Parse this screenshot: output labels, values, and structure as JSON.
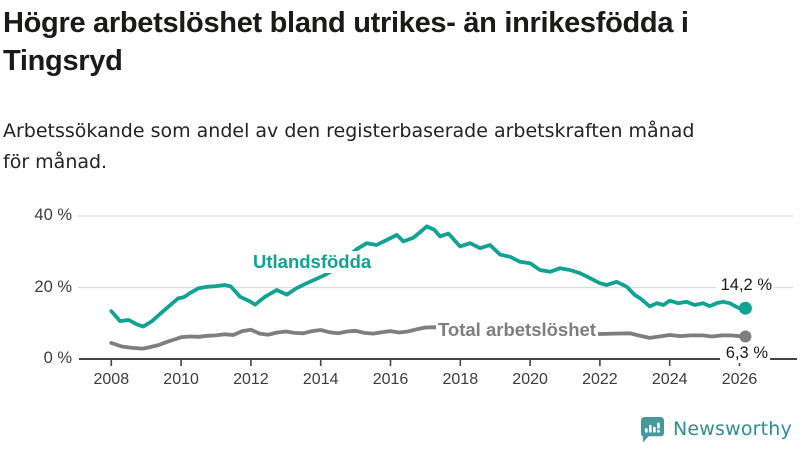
{
  "header": {
    "title": "Högre arbetslöshet bland utrikes- än inrikesfödda i Tingsryd",
    "title_lines": [
      "Högre arbetslöshet bland utrikes- än inrikesfödda i",
      "Tingsryd"
    ],
    "subtitle": "Arbetssökande som andel av den registerbaserade arbetskraften månad för månad.",
    "subtitle_lines": [
      "Arbetssökande som andel av den registerbaserade arbetskraften månad",
      "för månad."
    ]
  },
  "chart_data": {
    "type": "line",
    "title": "Högre arbetslöshet bland utrikes- än inrikesfödda i Tingsryd",
    "subtitle": "Arbetssökande som andel av den registerbaserade arbetskraften månad för månad.",
    "xlabel": "",
    "ylabel": "",
    "ylim": [
      0,
      43
    ],
    "xlim": [
      2007.1,
      2027.6
    ],
    "grid": "horizontal",
    "grid_color": "#dcdcdc",
    "axis_color": "#444444",
    "tick_label_color": "#3d3d3d",
    "x_ticks": [
      2008,
      2010,
      2012,
      2014,
      2016,
      2018,
      2020,
      2022,
      2024,
      2026
    ],
    "y_gridlines": [
      20,
      40
    ],
    "y_axis_labels": [
      {
        "value": 40,
        "label": "40 %"
      },
      {
        "value": 20,
        "label": "20 %"
      },
      {
        "value": 0,
        "label": "0 %"
      }
    ],
    "series": [
      {
        "name": "Utlandsfödda",
        "color": "#12a294",
        "end_label": "14,2 %",
        "end_value": 14.2,
        "points": [
          [
            2008.0,
            13.4
          ],
          [
            2008.25,
            10.6
          ],
          [
            2008.5,
            10.9
          ],
          [
            2008.75,
            9.6
          ],
          [
            2008.92,
            9.1
          ],
          [
            2009.17,
            10.6
          ],
          [
            2009.42,
            12.8
          ],
          [
            2009.67,
            14.9
          ],
          [
            2009.92,
            17.0
          ],
          [
            2010.08,
            17.3
          ],
          [
            2010.25,
            18.4
          ],
          [
            2010.5,
            19.8
          ],
          [
            2010.75,
            20.2
          ],
          [
            2011.0,
            20.4
          ],
          [
            2011.25,
            20.7
          ],
          [
            2011.42,
            20.3
          ],
          [
            2011.69,
            17.4
          ],
          [
            2011.97,
            16.1
          ],
          [
            2012.12,
            15.2
          ],
          [
            2012.4,
            17.4
          ],
          [
            2012.74,
            19.3
          ],
          [
            2013.03,
            18.0
          ],
          [
            2013.31,
            19.8
          ],
          [
            2013.6,
            21.2
          ],
          [
            2013.85,
            22.3
          ],
          [
            2014.1,
            23.4
          ],
          [
            2014.35,
            24.8
          ],
          [
            2014.6,
            26.8
          ],
          [
            2014.85,
            29.2
          ],
          [
            2015.03,
            30.7
          ],
          [
            2015.32,
            32.4
          ],
          [
            2015.6,
            31.9
          ],
          [
            2015.89,
            33.3
          ],
          [
            2016.18,
            34.7
          ],
          [
            2016.37,
            32.9
          ],
          [
            2016.65,
            33.9
          ],
          [
            2016.85,
            35.5
          ],
          [
            2017.04,
            37.1
          ],
          [
            2017.25,
            36.2
          ],
          [
            2017.42,
            34.3
          ],
          [
            2017.66,
            35.1
          ],
          [
            2017.99,
            31.5
          ],
          [
            2018.28,
            32.4
          ],
          [
            2018.57,
            31.0
          ],
          [
            2018.85,
            31.9
          ],
          [
            2019.14,
            29.2
          ],
          [
            2019.43,
            28.6
          ],
          [
            2019.71,
            27.2
          ],
          [
            2020.0,
            26.8
          ],
          [
            2020.28,
            24.9
          ],
          [
            2020.57,
            24.4
          ],
          [
            2020.86,
            25.4
          ],
          [
            2021.14,
            24.9
          ],
          [
            2021.43,
            24.0
          ],
          [
            2021.72,
            22.6
          ],
          [
            2022.0,
            21.2
          ],
          [
            2022.19,
            20.7
          ],
          [
            2022.48,
            21.6
          ],
          [
            2022.77,
            20.2
          ],
          [
            2023.0,
            17.9
          ],
          [
            2023.15,
            17.0
          ],
          [
            2023.43,
            14.7
          ],
          [
            2023.63,
            15.6
          ],
          [
            2023.82,
            15.1
          ],
          [
            2024.0,
            16.3
          ],
          [
            2024.24,
            15.6
          ],
          [
            2024.48,
            16.0
          ],
          [
            2024.72,
            15.1
          ],
          [
            2024.96,
            15.6
          ],
          [
            2025.15,
            14.8
          ],
          [
            2025.34,
            15.6
          ],
          [
            2025.53,
            16.0
          ],
          [
            2025.72,
            15.6
          ],
          [
            2025.91,
            14.6
          ],
          [
            2026.08,
            13.8
          ],
          [
            2026.17,
            14.2
          ]
        ]
      },
      {
        "name": "Total arbetslöshet",
        "color": "#7e7e7e",
        "end_label": "6,3 %",
        "end_value": 6.3,
        "points": [
          [
            2008.0,
            4.5
          ],
          [
            2008.3,
            3.5
          ],
          [
            2008.6,
            3.1
          ],
          [
            2008.9,
            2.9
          ],
          [
            2009.1,
            3.3
          ],
          [
            2009.35,
            3.9
          ],
          [
            2009.6,
            4.8
          ],
          [
            2009.85,
            5.6
          ],
          [
            2010.0,
            6.1
          ],
          [
            2010.25,
            6.3
          ],
          [
            2010.5,
            6.2
          ],
          [
            2010.75,
            6.5
          ],
          [
            2011.0,
            6.6
          ],
          [
            2011.25,
            6.9
          ],
          [
            2011.5,
            6.7
          ],
          [
            2011.75,
            7.8
          ],
          [
            2012.0,
            8.2
          ],
          [
            2012.25,
            7.1
          ],
          [
            2012.5,
            6.8
          ],
          [
            2012.75,
            7.4
          ],
          [
            2013.0,
            7.7
          ],
          [
            2013.25,
            7.3
          ],
          [
            2013.5,
            7.2
          ],
          [
            2013.75,
            7.8
          ],
          [
            2014.0,
            8.1
          ],
          [
            2014.25,
            7.5
          ],
          [
            2014.5,
            7.2
          ],
          [
            2014.75,
            7.7
          ],
          [
            2015.0,
            7.9
          ],
          [
            2015.25,
            7.3
          ],
          [
            2015.5,
            7.1
          ],
          [
            2015.75,
            7.5
          ],
          [
            2016.0,
            7.8
          ],
          [
            2016.25,
            7.4
          ],
          [
            2016.5,
            7.7
          ],
          [
            2016.75,
            8.3
          ],
          [
            2017.0,
            8.8
          ],
          [
            2017.3,
            8.9
          ],
          [
            2017.6,
            8.5
          ],
          [
            2018.0,
            7.9
          ],
          [
            2018.3,
            8.1
          ],
          [
            2018.6,
            7.7
          ],
          [
            2019.0,
            7.5
          ],
          [
            2019.5,
            7.2
          ],
          [
            2020.0,
            7.7
          ],
          [
            2020.4,
            8.0
          ],
          [
            2020.8,
            7.8
          ],
          [
            2021.2,
            7.5
          ],
          [
            2021.6,
            7.2
          ],
          [
            2022.0,
            7.0
          ],
          [
            2022.4,
            7.1
          ],
          [
            2022.87,
            7.2
          ],
          [
            2023.1,
            6.6
          ],
          [
            2023.43,
            5.9
          ],
          [
            2023.7,
            6.3
          ],
          [
            2024.0,
            6.7
          ],
          [
            2024.3,
            6.4
          ],
          [
            2024.6,
            6.6
          ],
          [
            2024.95,
            6.6
          ],
          [
            2025.2,
            6.3
          ],
          [
            2025.5,
            6.6
          ],
          [
            2025.75,
            6.6
          ],
          [
            2026.0,
            6.4
          ],
          [
            2026.17,
            6.3
          ]
        ]
      }
    ]
  },
  "footer": {
    "brand": "Newsworthy",
    "brand_text_color": "#2e8d95",
    "logo_color": "#45989b",
    "logo_icon": "bar-chart-speech-bubble-icon"
  }
}
